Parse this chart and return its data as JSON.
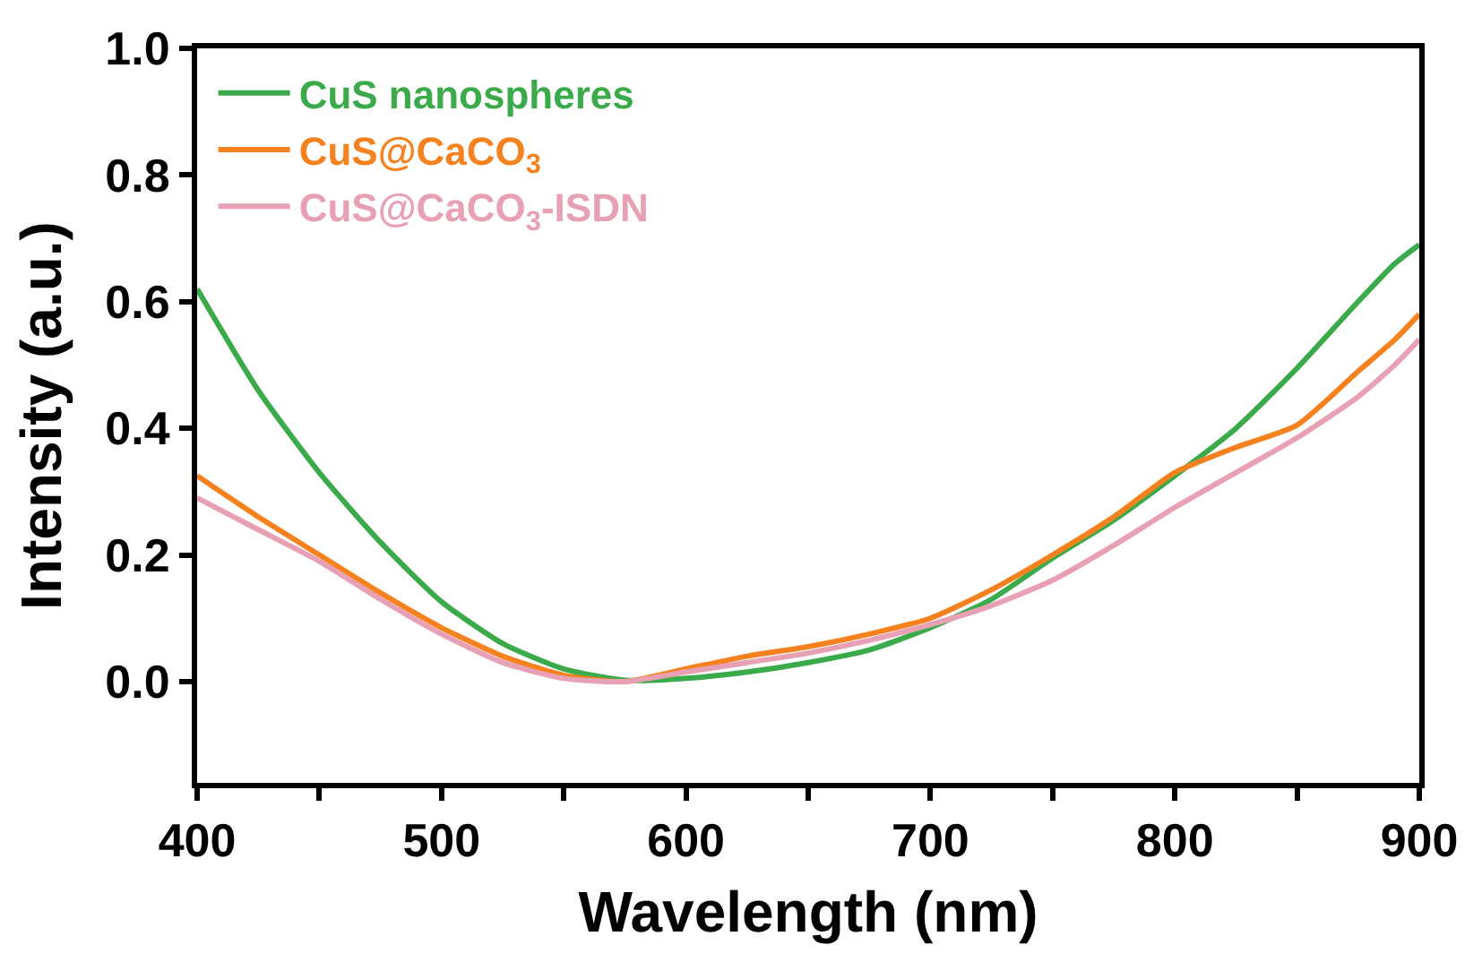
{
  "chart_data": {
    "type": "line",
    "xlabel": "Wavelength (nm)",
    "ylabel": "Intensity (a.u.)",
    "x": [
      400,
      425,
      450,
      475,
      500,
      525,
      550,
      575,
      600,
      625,
      650,
      675,
      700,
      725,
      750,
      775,
      800,
      825,
      850,
      875,
      890,
      900
    ],
    "xlim": [
      400,
      900
    ],
    "ylim": [
      -0.16,
      1.0
    ],
    "xticks": [
      400,
      {
        "value": 450,
        "label": null
      },
      500,
      {
        "value": 550,
        "label": null
      },
      600,
      {
        "value": 650,
        "label": null
      },
      700,
      {
        "value": 750,
        "label": null
      },
      800,
      {
        "value": 850,
        "label": null
      },
      900
    ],
    "yticks": [
      {
        "value": 0,
        "label": "0.0"
      },
      {
        "value": 0.2,
        "label": "0.2"
      },
      {
        "value": 0.4,
        "label": "0.4"
      },
      {
        "value": 0.6,
        "label": "0.6"
      },
      {
        "value": 0.8,
        "label": "0.8"
      },
      {
        "value": 1,
        "label": "1.0"
      }
    ],
    "legend": "top left",
    "line_style": "solid",
    "marker": "none",
    "series": [
      {
        "name": "CuS nanospheres",
        "color": "#3aaa4a",
        "values": [
          0.62,
          0.46,
          0.33,
          0.22,
          0.126,
          0.06,
          0.02,
          0.002,
          0.005,
          0.015,
          0.03,
          0.05,
          0.085,
          0.13,
          0.195,
          0.255,
          0.325,
          0.4,
          0.495,
          0.6,
          0.66,
          0.69
        ]
      },
      {
        "name": "CuS@CaCO$_{3}$",
        "color": "#f5821f",
        "values": [
          0.325,
          0.26,
          0.2,
          0.14,
          0.085,
          0.04,
          0.01,
          0.0,
          0.02,
          0.04,
          0.055,
          0.075,
          0.1,
          0.145,
          0.2,
          0.26,
          0.33,
          0.37,
          0.405,
          0.49,
          0.54,
          0.58
        ]
      },
      {
        "name": "CuS@CaCO$_{3}$-ISDN",
        "color": "#e8a0b4",
        "values": [
          0.29,
          0.24,
          0.19,
          0.13,
          0.075,
          0.03,
          0.005,
          0.0,
          0.015,
          0.03,
          0.045,
          0.065,
          0.09,
          0.12,
          0.16,
          0.215,
          0.275,
          0.33,
          0.385,
          0.45,
          0.5,
          0.54
        ]
      }
    ]
  }
}
